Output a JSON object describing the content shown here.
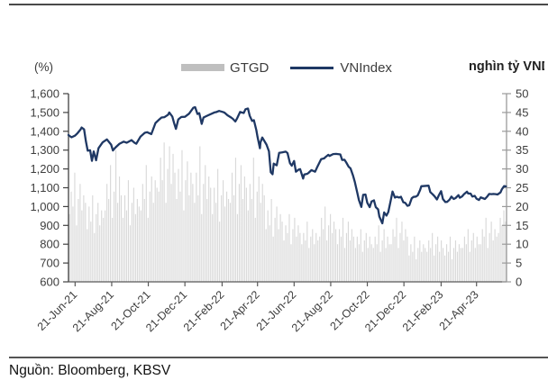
{
  "footer": {
    "source": "Nguồn: Bloomberg, KBSV"
  },
  "chart_data": {
    "type": "combo",
    "title": "",
    "grid": false,
    "legend_position": "top-center",
    "x_range": {
      "start": "2021-06-10",
      "end": "2023-06-10"
    },
    "x_ticks": [
      {
        "label": "21-Jun-21",
        "date": "2021-06-21"
      },
      {
        "label": "21-Aug-21",
        "date": "2021-08-21"
      },
      {
        "label": "21-Oct-21",
        "date": "2021-10-21"
      },
      {
        "label": "21-Dec-21",
        "date": "2021-12-21"
      },
      {
        "label": "21-Feb-22",
        "date": "2022-02-21"
      },
      {
        "label": "21-Apr-22",
        "date": "2022-04-21"
      },
      {
        "label": "21-Jun-22",
        "date": "2022-06-21"
      },
      {
        "label": "21-Aug-22",
        "date": "2022-08-21"
      },
      {
        "label": "21-Oct-22",
        "date": "2022-10-21"
      },
      {
        "label": "21-Dec-22",
        "date": "2022-12-21"
      },
      {
        "label": "21-Feb-23",
        "date": "2023-02-21"
      },
      {
        "label": "21-Apr-23",
        "date": "2023-04-21"
      }
    ],
    "left_axis": {
      "unit": "(%)",
      "min": 600,
      "max": 1600,
      "step": 100,
      "tick_labels": [
        "600",
        "700",
        "800",
        "900",
        "1,000",
        "1,100",
        "1,200",
        "1,300",
        "1,400",
        "1,500",
        "1,600"
      ]
    },
    "right_axis": {
      "unit": "nghìn tỷ VND",
      "min": 0,
      "max": 50,
      "step": 5,
      "tick_labels": [
        "0",
        "5",
        "10",
        "15",
        "20",
        "25",
        "30",
        "35",
        "40",
        "45",
        "50"
      ]
    },
    "series": [
      {
        "name": "GTGD",
        "type": "bar",
        "axis": "right",
        "color": "#d9d9d9",
        "legend_color": "#bfbfbf",
        "values": [
          18,
          24,
          20,
          29,
          15,
          22,
          26,
          19,
          23,
          21,
          14,
          20,
          16,
          23,
          13,
          18,
          21,
          15,
          19,
          17,
          19,
          26,
          22,
          31,
          17,
          24,
          35,
          21,
          28,
          23,
          17,
          23,
          19,
          27,
          15,
          21,
          25,
          18,
          22,
          20,
          19,
          26,
          22,
          31,
          17,
          24,
          28,
          21,
          27,
          25,
          24,
          33,
          27,
          37,
          21,
          30,
          36,
          26,
          34,
          29,
          22,
          30,
          24,
          35,
          19,
          27,
          32,
          23,
          29,
          26,
          21,
          29,
          23,
          36,
          18,
          26,
          31,
          22,
          28,
          25,
          18,
          25,
          21,
          30,
          16,
          23,
          27,
          20,
          24,
          22,
          21,
          29,
          23,
          33,
          18,
          26,
          31,
          22,
          28,
          25,
          19,
          26,
          22,
          33,
          17,
          24,
          28,
          21,
          26,
          23,
          14,
          19,
          15,
          22,
          12,
          17,
          20,
          14,
          18,
          16,
          11,
          15,
          13,
          18,
          10,
          14,
          17,
          12,
          15,
          13,
          10,
          13,
          11,
          16,
          9,
          12,
          14,
          10,
          13,
          11,
          12,
          17,
          14,
          20,
          11,
          15,
          18,
          13,
          16,
          14,
          10,
          14,
          12,
          17,
          9,
          13,
          16,
          11,
          14,
          12,
          9,
          12,
          10,
          14,
          8,
          11,
          13,
          9,
          12,
          10,
          9,
          12,
          10,
          15,
          8,
          11,
          14,
          9,
          12,
          10,
          10,
          14,
          12,
          17,
          9,
          13,
          16,
          11,
          14,
          12,
          7,
          10,
          8,
          12,
          6,
          9,
          11,
          8,
          10,
          9,
          8,
          11,
          9,
          13,
          7,
          10,
          12,
          8,
          11,
          9,
          7,
          10,
          8,
          12,
          6,
          9,
          11,
          8,
          10,
          9,
          9,
          12,
          10,
          14,
          8,
          11,
          13,
          9,
          12,
          10,
          10,
          14,
          12,
          17,
          9,
          13,
          16,
          11,
          14,
          12,
          13,
          17,
          15,
          19,
          16
        ]
      },
      {
        "name": "VNIndex",
        "type": "line",
        "axis": "left",
        "color": "#1f3864",
        "points": [
          [
            "2021-06-10",
            1380
          ],
          [
            "2021-06-15",
            1368
          ],
          [
            "2021-06-21",
            1377
          ],
          [
            "2021-06-25",
            1390
          ],
          [
            "2021-06-30",
            1409
          ],
          [
            "2021-07-02",
            1420
          ],
          [
            "2021-07-06",
            1410
          ],
          [
            "2021-07-09",
            1347
          ],
          [
            "2021-07-12",
            1297
          ],
          [
            "2021-07-16",
            1299
          ],
          [
            "2021-07-19",
            1243
          ],
          [
            "2021-07-22",
            1293
          ],
          [
            "2021-07-26",
            1246
          ],
          [
            "2021-07-30",
            1310
          ],
          [
            "2021-08-06",
            1341
          ],
          [
            "2021-08-13",
            1357
          ],
          [
            "2021-08-20",
            1329
          ],
          [
            "2021-08-23",
            1298
          ],
          [
            "2021-08-27",
            1313
          ],
          [
            "2021-09-03",
            1334
          ],
          [
            "2021-09-10",
            1345
          ],
          [
            "2021-09-15",
            1339
          ],
          [
            "2021-09-23",
            1353
          ],
          [
            "2021-09-28",
            1339
          ],
          [
            "2021-10-01",
            1334
          ],
          [
            "2021-10-08",
            1372
          ],
          [
            "2021-10-15",
            1392
          ],
          [
            "2021-10-19",
            1395
          ],
          [
            "2021-10-26",
            1385
          ],
          [
            "2021-11-02",
            1444
          ],
          [
            "2021-11-09",
            1465
          ],
          [
            "2021-11-12",
            1473
          ],
          [
            "2021-11-17",
            1475
          ],
          [
            "2021-11-23",
            1488
          ],
          [
            "2021-11-25",
            1500
          ],
          [
            "2021-11-30",
            1478
          ],
          [
            "2021-12-03",
            1443
          ],
          [
            "2021-12-06",
            1413
          ],
          [
            "2021-12-10",
            1463
          ],
          [
            "2021-12-15",
            1476
          ],
          [
            "2021-12-21",
            1477
          ],
          [
            "2021-12-28",
            1494
          ],
          [
            "2022-01-04",
            1525
          ],
          [
            "2022-01-07",
            1528
          ],
          [
            "2022-01-11",
            1492
          ],
          [
            "2022-01-14",
            1496
          ],
          [
            "2022-01-18",
            1439
          ],
          [
            "2022-01-21",
            1473
          ],
          [
            "2022-01-26",
            1481
          ],
          [
            "2022-02-08",
            1500
          ],
          [
            "2022-02-11",
            1502
          ],
          [
            "2022-02-16",
            1508
          ],
          [
            "2022-02-22",
            1503
          ],
          [
            "2022-02-25",
            1499
          ],
          [
            "2022-03-02",
            1485
          ],
          [
            "2022-03-08",
            1473
          ],
          [
            "2022-03-11",
            1466
          ],
          [
            "2022-03-15",
            1452
          ],
          [
            "2022-03-18",
            1469
          ],
          [
            "2022-03-23",
            1503
          ],
          [
            "2022-03-29",
            1497
          ],
          [
            "2022-04-01",
            1517
          ],
          [
            "2022-04-05",
            1521
          ],
          [
            "2022-04-08",
            1482
          ],
          [
            "2022-04-12",
            1455
          ],
          [
            "2022-04-15",
            1459
          ],
          [
            "2022-04-19",
            1406
          ],
          [
            "2022-04-21",
            1371
          ],
          [
            "2022-04-25",
            1310
          ],
          [
            "2022-04-26",
            1341
          ],
          [
            "2022-04-29",
            1367
          ],
          [
            "2022-05-06",
            1329
          ],
          [
            "2022-05-10",
            1294
          ],
          [
            "2022-05-13",
            1183
          ],
          [
            "2022-05-16",
            1172
          ],
          [
            "2022-05-18",
            1228
          ],
          [
            "2022-05-23",
            1219
          ],
          [
            "2022-05-27",
            1285
          ],
          [
            "2022-06-01",
            1288
          ],
          [
            "2022-06-07",
            1292
          ],
          [
            "2022-06-10",
            1284
          ],
          [
            "2022-06-14",
            1231
          ],
          [
            "2022-06-17",
            1217
          ],
          [
            "2022-06-21",
            1242
          ],
          [
            "2022-06-24",
            1185
          ],
          [
            "2022-06-29",
            1197
          ],
          [
            "2022-07-01",
            1199
          ],
          [
            "2022-07-06",
            1149
          ],
          [
            "2022-07-08",
            1171
          ],
          [
            "2022-07-13",
            1174
          ],
          [
            "2022-07-15",
            1179
          ],
          [
            "2022-07-20",
            1194
          ],
          [
            "2022-07-26",
            1185
          ],
          [
            "2022-07-29",
            1206
          ],
          [
            "2022-08-05",
            1252
          ],
          [
            "2022-08-10",
            1256
          ],
          [
            "2022-08-12",
            1262
          ],
          [
            "2022-08-17",
            1275
          ],
          [
            "2022-08-19",
            1269
          ],
          [
            "2022-08-25",
            1279
          ],
          [
            "2022-08-30",
            1280
          ],
          [
            "2022-09-06",
            1277
          ],
          [
            "2022-09-09",
            1248
          ],
          [
            "2022-09-13",
            1249
          ],
          [
            "2022-09-16",
            1234
          ],
          [
            "2022-09-20",
            1211
          ],
          [
            "2022-09-23",
            1203
          ],
          [
            "2022-09-27",
            1166
          ],
          [
            "2022-09-30",
            1132
          ],
          [
            "2022-10-04",
            1078
          ],
          [
            "2022-10-07",
            1035
          ],
          [
            "2022-10-11",
            998
          ],
          [
            "2022-10-14",
            1062
          ],
          [
            "2022-10-18",
            1064
          ],
          [
            "2022-10-21",
            1020
          ],
          [
            "2022-10-25",
            997
          ],
          [
            "2022-10-28",
            1027
          ],
          [
            "2022-11-01",
            1033
          ],
          [
            "2022-11-04",
            997
          ],
          [
            "2022-11-08",
            985
          ],
          [
            "2022-11-10",
            947
          ],
          [
            "2022-11-15",
            911
          ],
          [
            "2022-11-18",
            969
          ],
          [
            "2022-11-22",
            952
          ],
          [
            "2022-11-25",
            971
          ],
          [
            "2022-11-29",
            1032
          ],
          [
            "2022-12-02",
            1080
          ],
          [
            "2022-12-06",
            1048
          ],
          [
            "2022-12-09",
            1052
          ],
          [
            "2022-12-13",
            1048
          ],
          [
            "2022-12-16",
            1052
          ],
          [
            "2022-12-20",
            1023
          ],
          [
            "2022-12-23",
            1020
          ],
          [
            "2022-12-27",
            1004
          ],
          [
            "2022-12-30",
            1007
          ],
          [
            "2023-01-03",
            1044
          ],
          [
            "2023-01-06",
            1051
          ],
          [
            "2023-01-10",
            1053
          ],
          [
            "2023-01-13",
            1060
          ],
          [
            "2023-01-17",
            1088
          ],
          [
            "2023-01-19",
            1108
          ],
          [
            "2023-01-31",
            1111
          ],
          [
            "2023-02-03",
            1077
          ],
          [
            "2023-02-07",
            1065
          ],
          [
            "2023-02-10",
            1055
          ],
          [
            "2023-02-14",
            1038
          ],
          [
            "2023-02-17",
            1059
          ],
          [
            "2023-02-21",
            1082
          ],
          [
            "2023-02-24",
            1040
          ],
          [
            "2023-02-28",
            1024
          ],
          [
            "2023-03-03",
            1025
          ],
          [
            "2023-03-07",
            1037
          ],
          [
            "2023-03-10",
            1053
          ],
          [
            "2023-03-14",
            1040
          ],
          [
            "2023-03-17",
            1045
          ],
          [
            "2023-03-22",
            1061
          ],
          [
            "2023-03-24",
            1047
          ],
          [
            "2023-03-28",
            1054
          ],
          [
            "2023-03-31",
            1065
          ],
          [
            "2023-04-05",
            1079
          ],
          [
            "2023-04-07",
            1070
          ],
          [
            "2023-04-11",
            1069
          ],
          [
            "2023-04-14",
            1053
          ],
          [
            "2023-04-18",
            1057
          ],
          [
            "2023-04-21",
            1042
          ],
          [
            "2023-04-25",
            1035
          ],
          [
            "2023-04-28",
            1049
          ],
          [
            "2023-05-05",
            1040
          ],
          [
            "2023-05-09",
            1054
          ],
          [
            "2023-05-12",
            1067
          ],
          [
            "2023-05-16",
            1066
          ],
          [
            "2023-05-19",
            1067
          ],
          [
            "2023-05-23",
            1066
          ],
          [
            "2023-05-26",
            1064
          ],
          [
            "2023-05-31",
            1075
          ],
          [
            "2023-06-02",
            1091
          ],
          [
            "2023-06-06",
            1109
          ],
          [
            "2023-06-09",
            1107
          ]
        ]
      }
    ]
  }
}
